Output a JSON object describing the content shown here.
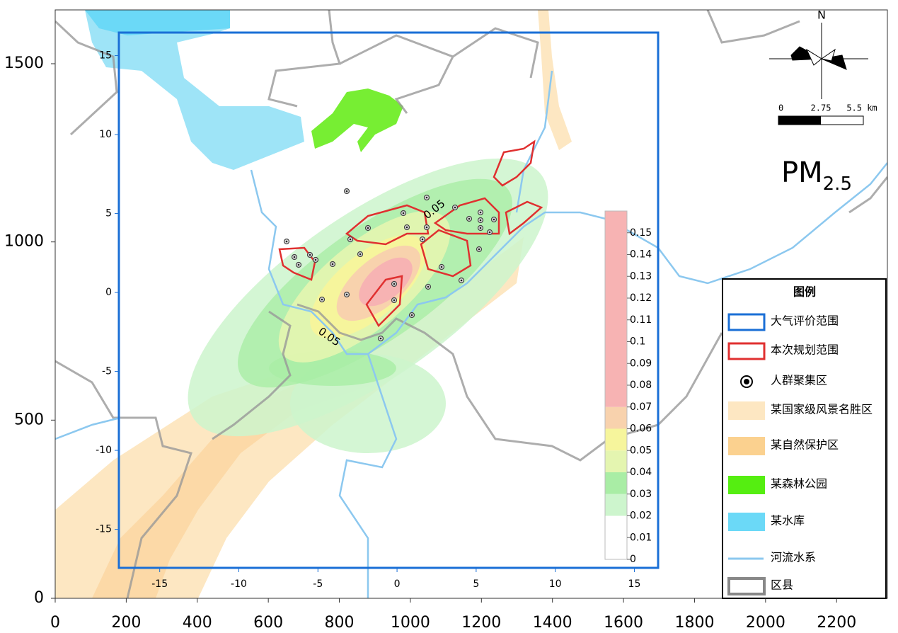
{
  "title": {
    "main": "PM",
    "sub": "2.5"
  },
  "outer_axes": {
    "xlim": [
      0,
      2343
    ],
    "xticks": [
      0,
      200,
      400,
      600,
      800,
      1000,
      1200,
      1400,
      1600,
      1800,
      2000,
      2200
    ],
    "ylim": [
      0,
      1651
    ],
    "yticks": [
      0,
      500,
      1000,
      1500
    ]
  },
  "inner_axes": {
    "xlim": [
      -17.58,
      16.5
    ],
    "xticks": [
      -15,
      -10,
      -5,
      0,
      5,
      10,
      15
    ],
    "ylim": [
      -17.44,
      16.46
    ],
    "yticks": [
      -15,
      -10,
      -5,
      0,
      5,
      10,
      15
    ]
  },
  "colorbar": {
    "levels": [
      0,
      0.02,
      0.03,
      0.04,
      0.05,
      0.06,
      0.07,
      0.16
    ],
    "colors": [
      "#ffffff",
      "#cdf5cd",
      "#a9eda5",
      "#e4f5b0",
      "#f6f59c",
      "#f8d2ad",
      "#f7b3b3"
    ],
    "ticks": [
      0,
      0.01,
      0.02,
      0.03,
      0.04,
      0.05,
      0.06,
      0.07,
      0.08,
      0.09,
      0.1,
      0.11,
      0.12,
      0.13,
      0.14,
      0.15
    ]
  },
  "contour_labels": [
    0.05,
    0.05
  ],
  "north": "N",
  "scale_bar": {
    "ticks": [
      0,
      2.75,
      {
        "value": 5.5,
        "label": "5.5 km"
      }
    ]
  },
  "legend": {
    "title": "图例",
    "items": [
      "大气评价范围",
      "本次规划范围",
      "人群聚集区",
      "某国家级风景名胜区",
      "某自然保护区",
      "某森林公园",
      "某水库",
      "河流水系",
      "区县"
    ]
  }
}
